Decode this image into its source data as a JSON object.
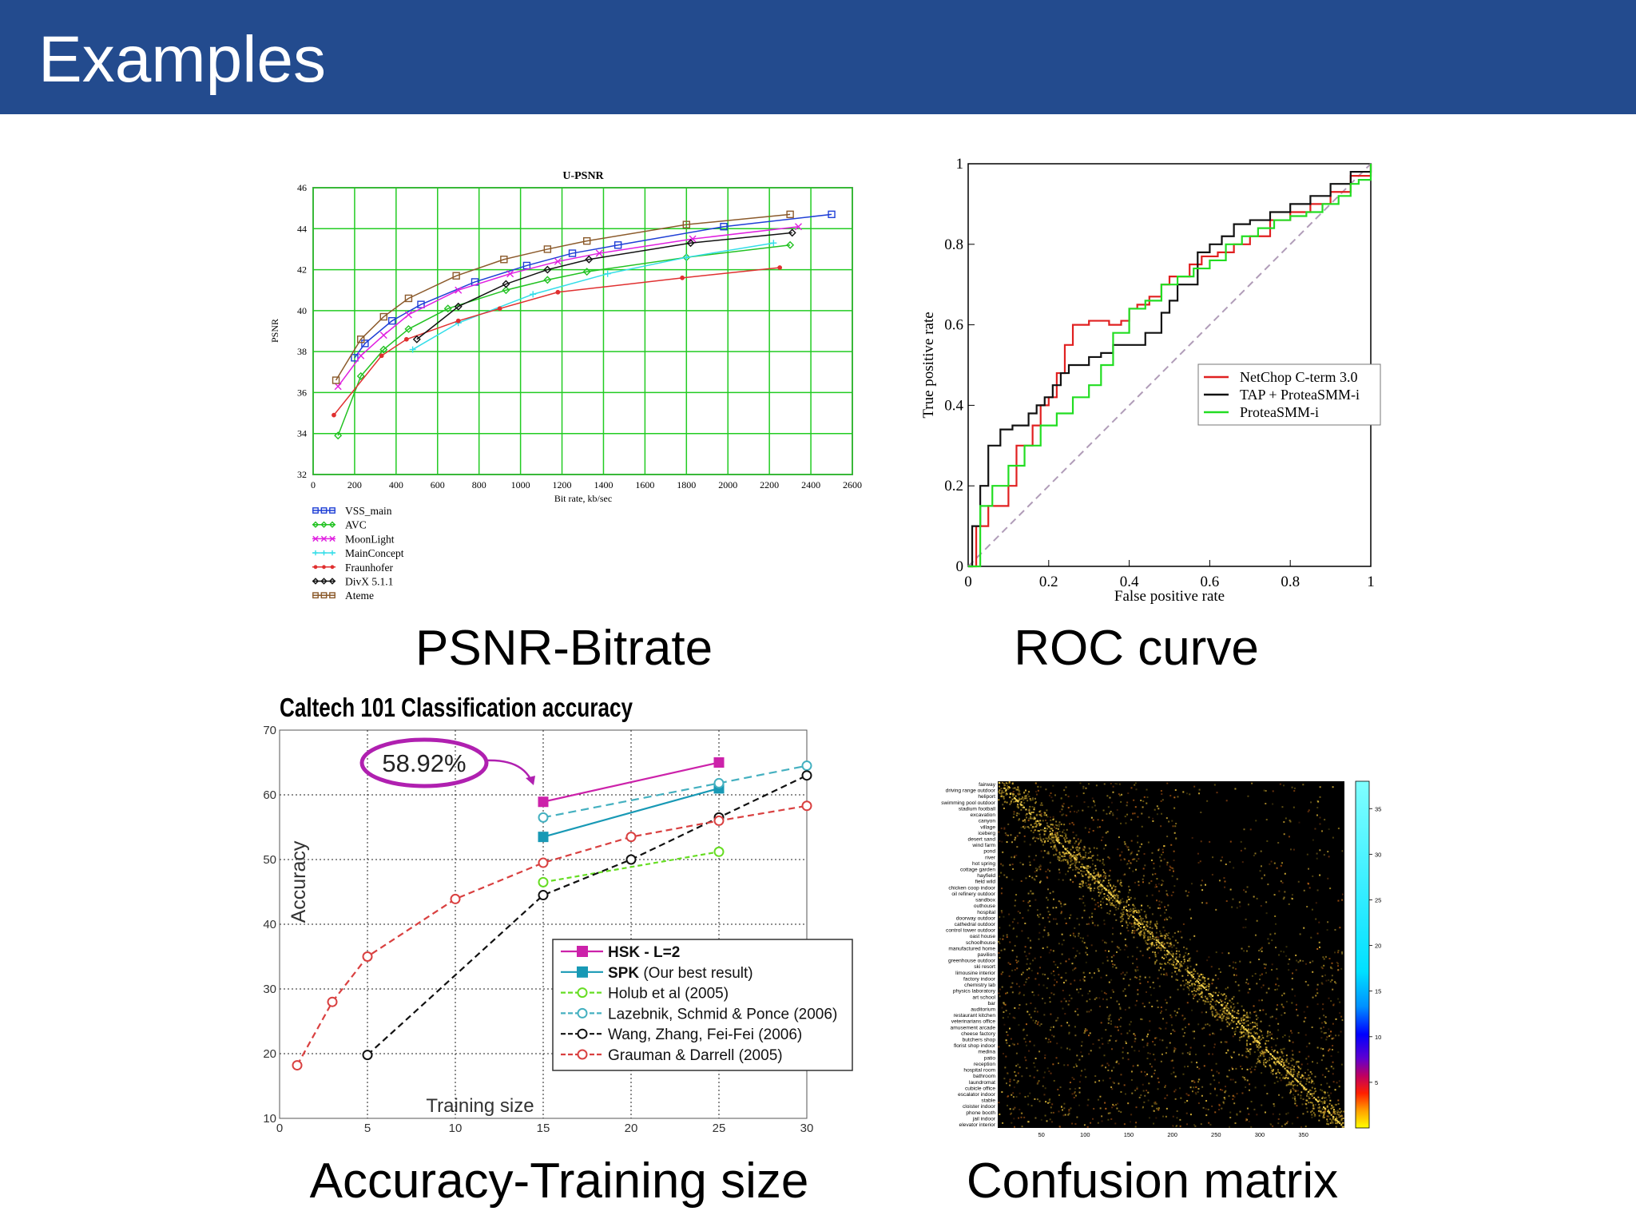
{
  "slide": {
    "title": "Examples",
    "captions": {
      "psnr": "PSNR-Bitrate",
      "roc": "ROC curve",
      "accuracy": "Accuracy-Training size",
      "confusion": "Confusion matrix"
    }
  },
  "colors": {
    "header": "#234b8e",
    "psnr_grid": "#22cc22"
  },
  "chart_data": [
    {
      "id": "psnr",
      "type": "line",
      "title": "U-PSNR",
      "xlabel": "Bit rate, kb/sec",
      "ylabel": "PSNR",
      "xlim": [
        0,
        2600
      ],
      "ylim": [
        32,
        46
      ],
      "xticks": [
        0,
        200,
        400,
        600,
        800,
        1000,
        1200,
        1400,
        1600,
        1800,
        2000,
        2200,
        2400,
        2600
      ],
      "yticks": [
        32,
        34,
        36,
        38,
        40,
        42,
        44,
        46
      ],
      "grid": true,
      "legend_position": "below-left",
      "series": [
        {
          "name": "VSS_main",
          "color": "#1f3fd6",
          "marker": "square",
          "dash": "",
          "x": [
            200,
            250,
            380,
            520,
            780,
            1030,
            1250,
            1470,
            1980,
            2500
          ],
          "y": [
            37.7,
            38.4,
            39.5,
            40.3,
            41.4,
            42.2,
            42.8,
            43.2,
            44.1,
            44.7
          ]
        },
        {
          "name": "AVC",
          "color": "#22c222",
          "marker": "diamond",
          "dash": "",
          "x": [
            120,
            230,
            340,
            460,
            650,
            930,
            1130,
            1320,
            1800,
            2300
          ],
          "y": [
            33.9,
            36.8,
            38.1,
            39.1,
            40.1,
            41.0,
            41.5,
            41.9,
            42.6,
            43.2
          ]
        },
        {
          "name": "MoonLight",
          "color": "#e020e0",
          "marker": "x",
          "dash": "",
          "x": [
            120,
            230,
            340,
            460,
            700,
            950,
            1180,
            1380,
            1830,
            2340
          ],
          "y": [
            36.3,
            37.8,
            38.8,
            39.8,
            41.0,
            41.8,
            42.4,
            42.8,
            43.5,
            44.1
          ]
        },
        {
          "name": "MainConcept",
          "color": "#33dde8",
          "marker": "plus",
          "dash": "",
          "x": [
            480,
            700,
            1060,
            1420,
            1800,
            2220
          ],
          "y": [
            38.1,
            39.4,
            40.8,
            41.8,
            42.6,
            43.3
          ]
        },
        {
          "name": "Fraunhofer",
          "color": "#e03030",
          "marker": "dot",
          "dash": "",
          "x": [
            100,
            330,
            450,
            700,
            900,
            1180,
            1780,
            2250
          ],
          "y": [
            34.9,
            37.8,
            38.6,
            39.5,
            40.1,
            40.9,
            41.6,
            42.1
          ]
        },
        {
          "name": "DivX 5.1.1",
          "color": "#111111",
          "marker": "diamond",
          "dash": "",
          "x": [
            500,
            700,
            930,
            1130,
            1330,
            1820,
            2310
          ],
          "y": [
            38.6,
            40.2,
            41.3,
            42.0,
            42.5,
            43.3,
            43.8
          ]
        },
        {
          "name": "Ateme",
          "color": "#8b5a2b",
          "marker": "square",
          "dash": "",
          "x": [
            110,
            230,
            340,
            460,
            690,
            920,
            1130,
            1320,
            1800,
            2300
          ],
          "y": [
            36.6,
            38.6,
            39.7,
            40.6,
            41.7,
            42.5,
            43.0,
            43.4,
            44.2,
            44.7
          ]
        }
      ]
    },
    {
      "id": "roc",
      "type": "line",
      "xlabel": "False positive rate",
      "ylabel": "True positive rate",
      "xlim": [
        0,
        1
      ],
      "ylim": [
        0,
        1
      ],
      "xticks": [
        0,
        0.2,
        0.4,
        0.6,
        0.8,
        1
      ],
      "yticks": [
        0,
        0.2,
        0.4,
        0.6,
        0.8,
        1
      ],
      "xticklabels": [
        "0",
        "0.2",
        "0.4",
        "0.6",
        "0.8",
        "1"
      ],
      "yticklabels": [
        "0",
        "0.2",
        "0.4",
        "0.6",
        "0.8",
        "1"
      ],
      "grid": false,
      "legend_position": "center-right",
      "series": [
        {
          "name": "NetChop C-term 3.0",
          "color": "#e02020",
          "x": [
            0,
            0.02,
            0.05,
            0.08,
            0.1,
            0.12,
            0.14,
            0.16,
            0.18,
            0.2,
            0.22,
            0.24,
            0.26,
            0.28,
            0.3,
            0.32,
            0.35,
            0.38,
            0.4,
            0.42,
            0.45,
            0.48,
            0.5,
            0.55,
            0.58,
            0.62,
            0.66,
            0.7,
            0.75,
            0.8,
            0.85,
            0.9,
            0.95,
            1
          ],
          "y": [
            0,
            0.1,
            0.15,
            0.15,
            0.2,
            0.3,
            0.3,
            0.35,
            0.4,
            0.42,
            0.48,
            0.55,
            0.6,
            0.6,
            0.61,
            0.61,
            0.6,
            0.61,
            0.64,
            0.65,
            0.67,
            0.7,
            0.72,
            0.75,
            0.77,
            0.78,
            0.8,
            0.82,
            0.86,
            0.88,
            0.9,
            0.93,
            0.97,
            1.0
          ]
        },
        {
          "name": "TAP + ProteaSMM-i",
          "color": "#111111",
          "x": [
            0,
            0.01,
            0.03,
            0.05,
            0.08,
            0.11,
            0.13,
            0.15,
            0.17,
            0.19,
            0.21,
            0.23,
            0.25,
            0.27,
            0.3,
            0.33,
            0.36,
            0.4,
            0.44,
            0.48,
            0.5,
            0.52,
            0.55,
            0.57,
            0.6,
            0.63,
            0.66,
            0.7,
            0.75,
            0.8,
            0.85,
            0.9,
            0.95,
            1
          ],
          "y": [
            0,
            0.1,
            0.2,
            0.3,
            0.34,
            0.35,
            0.35,
            0.38,
            0.4,
            0.42,
            0.45,
            0.48,
            0.5,
            0.5,
            0.52,
            0.53,
            0.55,
            0.55,
            0.58,
            0.63,
            0.66,
            0.7,
            0.7,
            0.78,
            0.8,
            0.82,
            0.85,
            0.86,
            0.88,
            0.9,
            0.92,
            0.95,
            0.98,
            1.0
          ]
        },
        {
          "name": "ProteaSMM-i",
          "color": "#22dd22",
          "x": [
            0,
            0.03,
            0.06,
            0.1,
            0.14,
            0.18,
            0.22,
            0.26,
            0.3,
            0.33,
            0.36,
            0.4,
            0.44,
            0.48,
            0.52,
            0.56,
            0.6,
            0.64,
            0.68,
            0.72,
            0.76,
            0.8,
            0.84,
            0.88,
            0.92,
            0.95,
            0.97,
            1
          ],
          "y": [
            0,
            0.15,
            0.2,
            0.25,
            0.3,
            0.35,
            0.38,
            0.42,
            0.45,
            0.5,
            0.58,
            0.64,
            0.66,
            0.7,
            0.72,
            0.74,
            0.76,
            0.8,
            0.82,
            0.84,
            0.86,
            0.87,
            0.88,
            0.9,
            0.92,
            0.95,
            0.96,
            1.0
          ]
        }
      ],
      "reference_line": {
        "x": [
          0,
          1
        ],
        "y": [
          0,
          1
        ],
        "style": "dashed",
        "color": "#b09cb8"
      }
    },
    {
      "id": "accuracy",
      "type": "line",
      "title": "Caltech 101 Classification accuracy",
      "xlabel": "Training size",
      "ylabel": "Accuracy",
      "xlim": [
        0,
        30
      ],
      "ylim": [
        10,
        70
      ],
      "xticks": [
        0,
        5,
        10,
        15,
        20,
        25,
        30
      ],
      "yticks": [
        10,
        20,
        30,
        40,
        50,
        60,
        70
      ],
      "grid": true,
      "legend_position": "lower-right",
      "annotation": {
        "text": "58.92%",
        "x": 15,
        "y": 58.92
      },
      "series": [
        {
          "name": "HSK - L=2",
          "bold": true,
          "suffix": "",
          "color": "#cc22aa",
          "marker": "square",
          "dash": "",
          "x": [
            15,
            25
          ],
          "y": [
            58.92,
            65
          ]
        },
        {
          "name": "SPK",
          "bold": true,
          "suffix": " (Our best result)",
          "color": "#1899b5",
          "marker": "square",
          "dash": "",
          "x": [
            15,
            25
          ],
          "y": [
            53.5,
            61
          ]
        },
        {
          "name": "Holub et al (2005)",
          "bold": false,
          "suffix": "",
          "color": "#66dd22",
          "marker": "circle",
          "dash": "6,4",
          "x": [
            15,
            25
          ],
          "y": [
            46.5,
            51.2
          ]
        },
        {
          "name": "Lazebnik, Schmid & Ponce (2006)",
          "bold": false,
          "suffix": "",
          "color": "#44b0c0",
          "marker": "circle",
          "dash": "10,6",
          "x": [
            15,
            25,
            30
          ],
          "y": [
            56.5,
            61.8,
            64.5
          ]
        },
        {
          "name": "Wang, Zhang, Fei-Fei (2006)",
          "bold": false,
          "suffix": "",
          "color": "#111111",
          "marker": "circle",
          "dash": "8,5",
          "x": [
            5,
            15,
            20,
            25,
            30
          ],
          "y": [
            19.8,
            44.5,
            50.0,
            56.5,
            63.0
          ]
        },
        {
          "name": "Grauman & Darrell (2005)",
          "bold": false,
          "suffix": "",
          "color": "#d94040",
          "marker": "circle",
          "dash": "8,5",
          "x": [
            1,
            3,
            5,
            10,
            15,
            20,
            25,
            30
          ],
          "y": [
            18.2,
            28.0,
            35.0,
            43.9,
            49.5,
            53.5,
            56.0,
            58.3
          ]
        }
      ]
    },
    {
      "id": "confusion",
      "type": "heatmap",
      "x_ticks": [
        50,
        100,
        150,
        200,
        250,
        300,
        350
      ],
      "xlim": [
        0,
        397
      ],
      "colorbar_ticks": [
        5,
        10,
        15,
        20,
        25,
        30,
        35
      ],
      "colorbar_range": [
        0,
        38
      ],
      "row_labels": [
        "fairway",
        "driving range outdoor",
        "heliport",
        "swimming pool outdoor",
        "stadium football",
        "excavation",
        "canyon",
        "village",
        "iceberg",
        "desert sand",
        "wind farm",
        "pond",
        "river",
        "hot spring",
        "cottage garden",
        "hayfield",
        "field wild",
        "chicken coop indoor",
        "oil refinery outdoor",
        "sandbox",
        "outhouse",
        "hospital",
        "doorway outdoor",
        "cathedral outdoor",
        "control tower outdoor",
        "oast house",
        "schoolhouse",
        "manufactured home",
        "pavilion",
        "greenhouse outdoor",
        "ski resort",
        "limousine interior",
        "factory indoor",
        "chemistry lab",
        "physics laboratory",
        "art school",
        "bar",
        "auditorium",
        "restaurant kitchen",
        "veterinarians office",
        "amusement arcade",
        "cheese factory",
        "butchers shop",
        "florist shop indoor",
        "medina",
        "patio",
        "reception",
        "hospital room",
        "bathroom",
        "laundromat",
        "cubicle office",
        "escalator indoor",
        "stable",
        "cloister indoor",
        "phone booth",
        "jail indoor",
        "elevator interior"
      ]
    }
  ]
}
